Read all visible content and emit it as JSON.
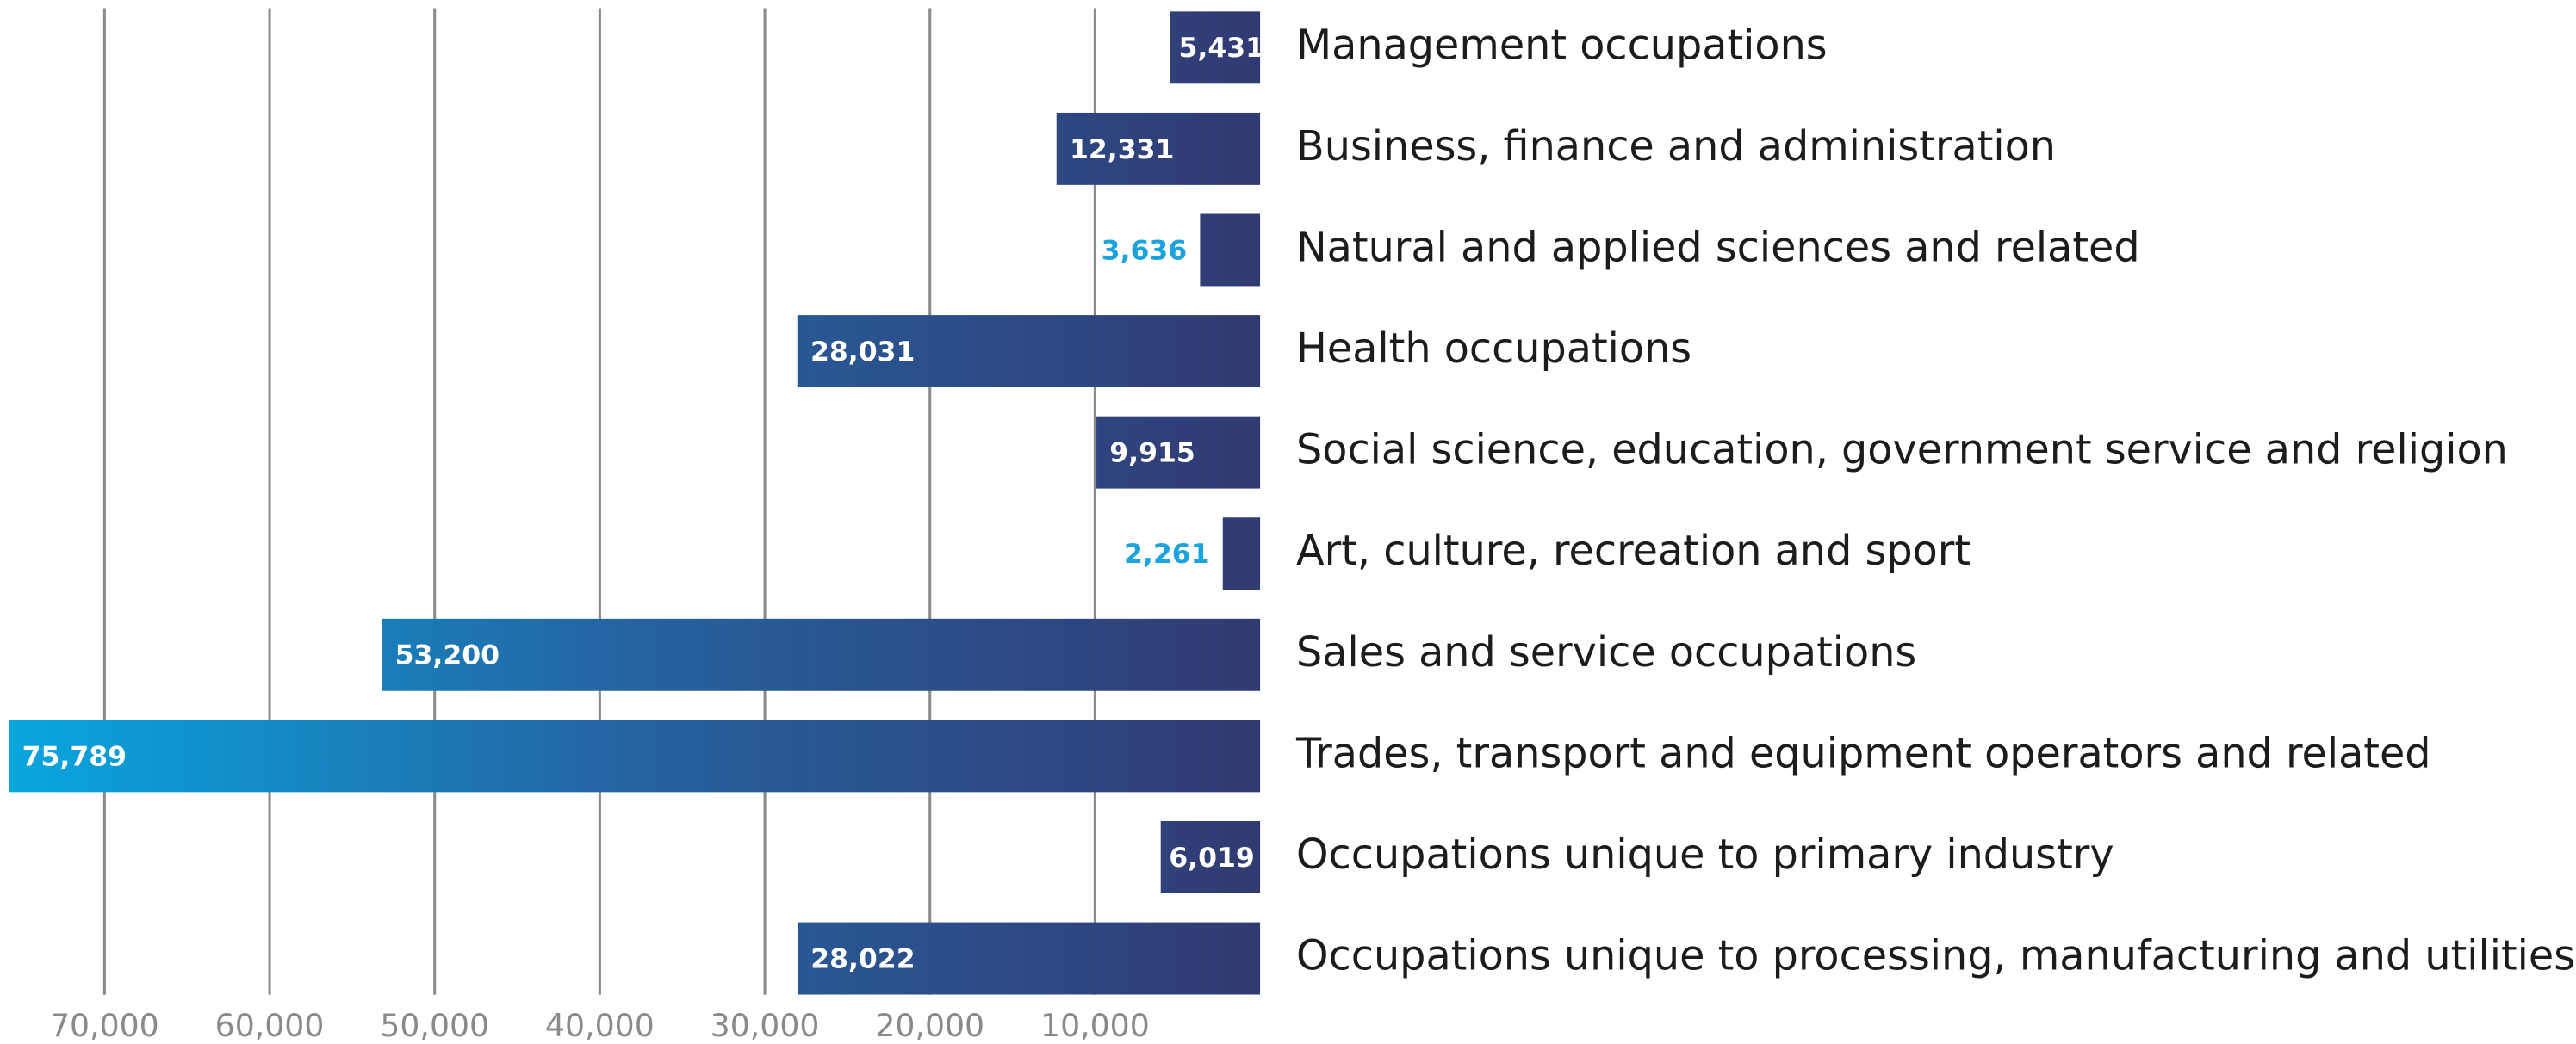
{
  "chart_data": {
    "type": "bar",
    "orientation": "horizontal",
    "direction": "leftward",
    "categories": [
      "Management occupations",
      "Business, finance and administration",
      "Natural and applied sciences and related",
      "Health occupations",
      "Social science, education, government service and religion",
      "Art, culture, recreation and sport",
      "Sales and service occupations",
      "Trades, transport and equipment operators and related",
      "Occupations unique to primary industry",
      "Occupations unique to processing, manufacturing and utilities"
    ],
    "values": [
      5431,
      12331,
      3636,
      28031,
      9915,
      2261,
      53200,
      75789,
      6019,
      28022
    ],
    "value_labels": [
      "5,431",
      "12,331",
      "3,636",
      "28,031",
      "9,915",
      "2,261",
      "53,200",
      "75,789",
      "6,019",
      "28,022"
    ],
    "gradient": [
      "#08a6df",
      "#323a72"
    ],
    "outside_label_color": "#1aa3dc",
    "xlim": [
      0,
      76300
    ],
    "xticks": [
      {
        "value": 70000,
        "label": "70,000"
      },
      {
        "value": 60000,
        "label": "60,000"
      },
      {
        "value": 50000,
        "label": "50,000"
      },
      {
        "value": 40000,
        "label": "40,000"
      },
      {
        "value": 30000,
        "label": "30,000"
      },
      {
        "value": 20000,
        "label": "20,000"
      },
      {
        "value": 10000,
        "label": "10,000"
      }
    ],
    "grid": true
  }
}
